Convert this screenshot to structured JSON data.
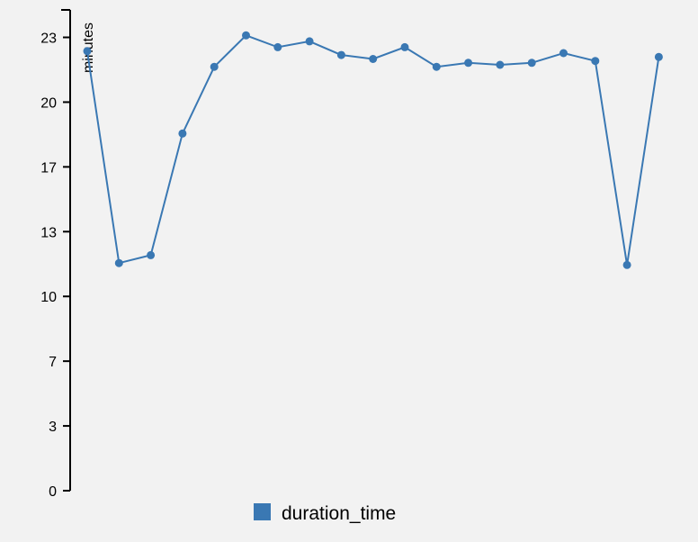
{
  "chart_data": {
    "type": "line",
    "title": "",
    "xlabel": "",
    "ylabel": "minutes",
    "ylim": [
      0,
      24.5
    ],
    "y_ticks": [
      {
        "value": 0,
        "label": "0"
      },
      {
        "value": 3.3,
        "label": "3"
      },
      {
        "value": 6.6,
        "label": "7"
      },
      {
        "value": 9.9,
        "label": "10"
      },
      {
        "value": 13.2,
        "label": "13"
      },
      {
        "value": 16.5,
        "label": "17"
      },
      {
        "value": 19.8,
        "label": "20"
      },
      {
        "value": 23.1,
        "label": "23"
      }
    ],
    "grid": false,
    "legend_position": "bottom",
    "series": [
      {
        "name": "duration_time",
        "color": "#3a78b3",
        "x": [
          1,
          2,
          3,
          4,
          5,
          6,
          7,
          8,
          9,
          10,
          11,
          12,
          13,
          14,
          15,
          16,
          17,
          18,
          19
        ],
        "values": [
          22.4,
          11.6,
          12.0,
          18.2,
          21.6,
          23.2,
          22.6,
          22.9,
          22.2,
          22.0,
          22.6,
          21.6,
          21.8,
          21.7,
          21.8,
          22.3,
          21.9,
          11.5,
          22.1
        ]
      }
    ]
  }
}
